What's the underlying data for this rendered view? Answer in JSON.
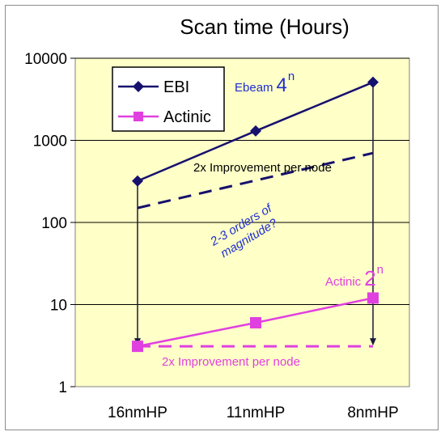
{
  "chart_data": {
    "type": "line",
    "title": "Scan time (Hours)",
    "y_scale": "log",
    "ylim": [
      1,
      10000
    ],
    "y_ticks": [
      1,
      10,
      100,
      1000,
      10000
    ],
    "y_tick_labels": [
      "1",
      "10",
      "100",
      "1000",
      "10000"
    ],
    "categories": [
      "16nmHP",
      "11nmHP",
      "8nmHP"
    ],
    "grid": true,
    "legend_position": "top-left",
    "plot_background": "#ffffc8",
    "series": [
      {
        "name": "EBI",
        "values": [
          320,
          1300,
          5100
        ],
        "color": "#16106e",
        "marker": "diamond"
      },
      {
        "name": "Actinic",
        "values": [
          3.1,
          6,
          12
        ],
        "color": "#e040e0",
        "marker": "square"
      }
    ],
    "reference_lines": [
      {
        "values": [
          150,
          700
        ],
        "from_index": 0,
        "to_index": 2,
        "color": "#16106e",
        "style": "dashed"
      },
      {
        "values": [
          3.1,
          3.1
        ],
        "from_index": 0,
        "to_index": 2,
        "color": "#e040e0",
        "style": "dashed"
      }
    ],
    "drop_arrows": [
      {
        "index": 0,
        "from": 320,
        "to": 3.1
      },
      {
        "index": 2,
        "from": 5100,
        "to": 3.1
      }
    ],
    "annotations": {
      "ebeam_base": "Ebeam",
      "ebeam_main": "4",
      "ebeam_exp": "n",
      "ebi_improve": "2x Improvement per node",
      "orders_line1": "2-3 orders of",
      "orders_line2": "magnitude?",
      "actinic_base": "Actinic",
      "actinic_main": "2",
      "actinic_exp": "n",
      "actinic_improve": "2x Improvement per node"
    },
    "colors": {
      "ebi": "#16106e",
      "actinic": "#e040e0",
      "annotation_blue": "#1f2fcf"
    }
  }
}
